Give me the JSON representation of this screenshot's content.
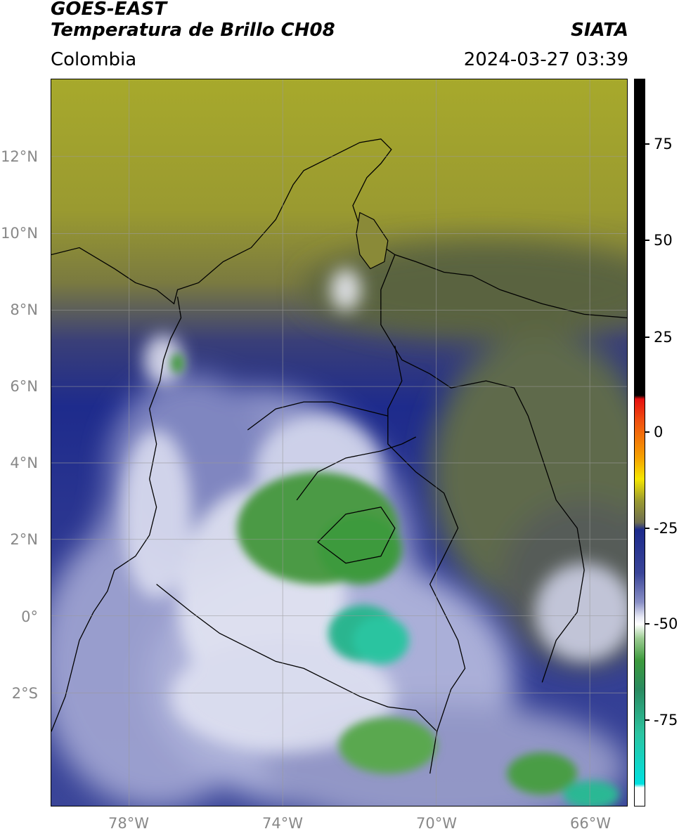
{
  "header": {
    "satellite": "GOES-EAST",
    "product": "Temperatura de Brillo CH08",
    "organization": "SIATA",
    "region": "Colombia",
    "timestamp": "2024-03-27 03:39"
  },
  "map": {
    "lat_labels": [
      "12°N",
      "10°N",
      "8°N",
      "6°N",
      "4°N",
      "2°N",
      "0°",
      "2°S"
    ],
    "lon_labels": [
      "78°W",
      "74°W",
      "70°W",
      "66°W"
    ]
  },
  "colorbar": {
    "labels": [
      "75",
      "50",
      "25",
      "0",
      "-25",
      "-50",
      "-75"
    ]
  },
  "colors": {
    "background_olive": "#8f8f2e",
    "deep_blue": "#1c2a8c",
    "cold_white": "#e6e8f4",
    "green": "#3c9a3c",
    "teal": "#2cc4a0"
  }
}
